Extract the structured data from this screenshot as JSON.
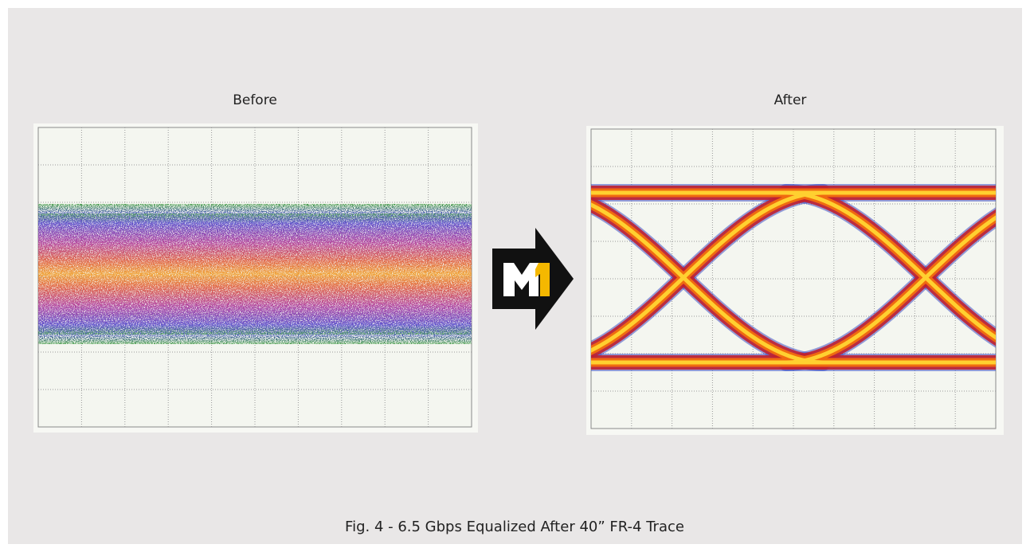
{
  "panels": [
    {
      "label": "Before"
    },
    {
      "label": "After"
    }
  ],
  "caption": "Fig. 4 - 6.5 Gbps Equalized After 40” FR-4 Trace"
}
